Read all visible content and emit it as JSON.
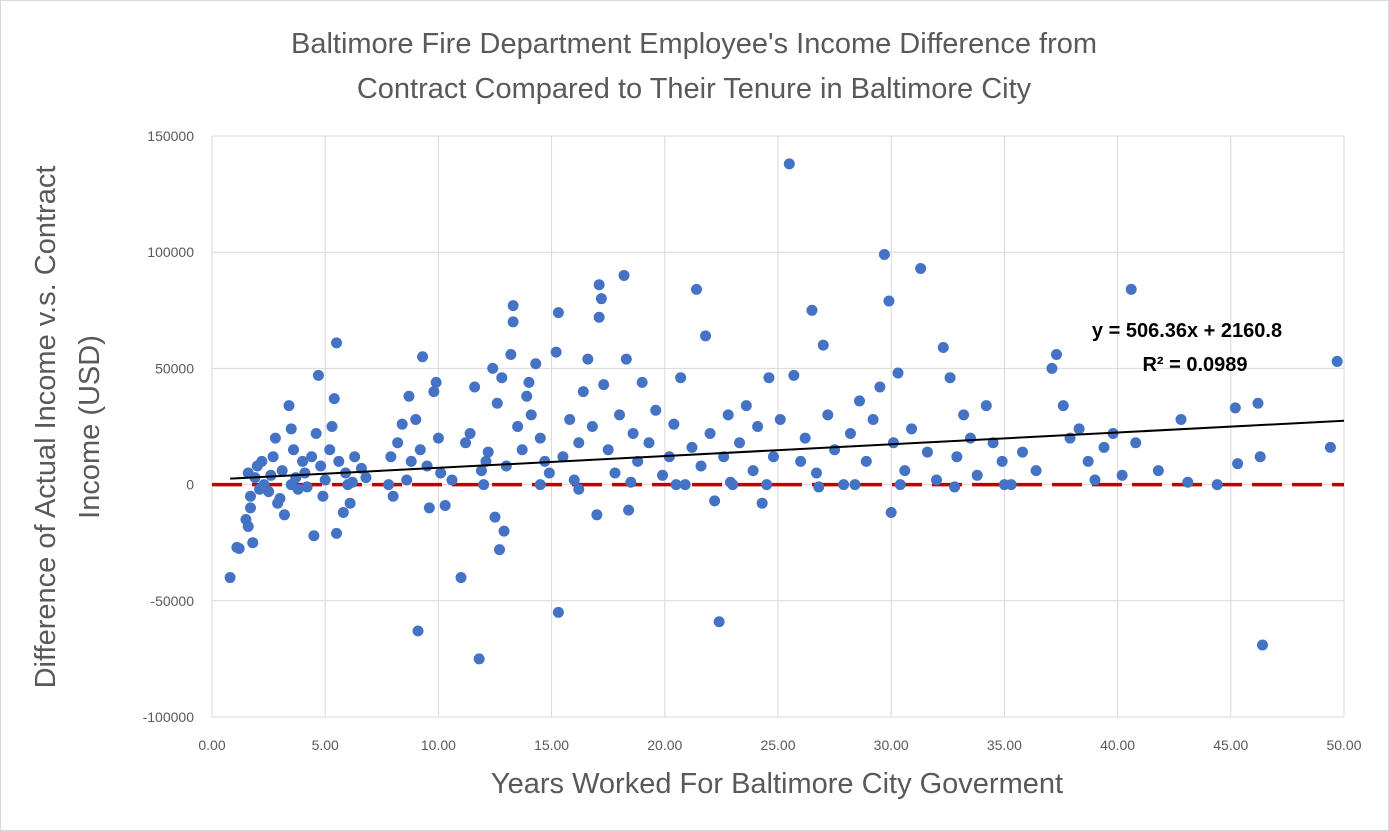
{
  "chart_data": {
    "type": "scatter",
    "title_lines": [
      "Baltimore Fire Department Employee's Income Difference from",
      "Contract Compared to Their Tenure in Baltimore City"
    ],
    "xlabel": "Years Worked For Baltimore City Goverment",
    "ylabel_lines": [
      "Difference of Actual Income v.s. Contract",
      "Income (USD)"
    ],
    "xlim": [
      0,
      50
    ],
    "ylim": [
      -100000,
      150000
    ],
    "x_ticks": [
      0,
      5,
      10,
      15,
      20,
      25,
      30,
      35,
      40,
      45,
      50
    ],
    "x_tick_labels": [
      "0.00",
      "5.00",
      "10.00",
      "15.00",
      "20.00",
      "25.00",
      "30.00",
      "35.00",
      "40.00",
      "45.00",
      "50.00"
    ],
    "y_ticks": [
      -100000,
      -50000,
      0,
      50000,
      100000,
      150000
    ],
    "y_tick_labels": [
      "-100000",
      "-50000",
      "0",
      "50000",
      "100000",
      "150000"
    ],
    "grid": {
      "x": true,
      "y": true
    },
    "colors": {
      "points": "#4472c4",
      "trendline": "#000000",
      "zero_line": "#c00000",
      "grid": "#d9d9d9"
    },
    "trendline": {
      "slope": 506.36,
      "intercept": 2160.8,
      "x_range": [
        0.8,
        50
      ]
    },
    "zero_line": {
      "y": 0,
      "style": "dashed"
    },
    "equation_label": "y = 506.36x + 2160.8",
    "r_squared_label": "R² = 0.0989",
    "points": [
      [
        0.8,
        -40000
      ],
      [
        1.1,
        -27000
      ],
      [
        1.2,
        -27500
      ],
      [
        1.5,
        -15000
      ],
      [
        1.6,
        -18000
      ],
      [
        1.7,
        -10000
      ],
      [
        1.8,
        -25000
      ],
      [
        1.6,
        5000
      ],
      [
        1.7,
        -5000
      ],
      [
        1.9,
        3000
      ],
      [
        2.0,
        8000
      ],
      [
        2.1,
        -2000
      ],
      [
        2.2,
        10000
      ],
      [
        2.3,
        0
      ],
      [
        2.5,
        -3000
      ],
      [
        2.6,
        4000
      ],
      [
        2.7,
        12000
      ],
      [
        2.8,
        20000
      ],
      [
        2.9,
        -8000
      ],
      [
        3.0,
        -6000
      ],
      [
        3.1,
        6000
      ],
      [
        3.2,
        -13000
      ],
      [
        3.4,
        34000
      ],
      [
        3.5,
        24000
      ],
      [
        3.6,
        15000
      ],
      [
        3.7,
        3000
      ],
      [
        3.8,
        -2000
      ],
      [
        4.0,
        10000
      ],
      [
        4.1,
        5000
      ],
      [
        4.2,
        -1000
      ],
      [
        4.4,
        12000
      ],
      [
        4.5,
        -22000
      ],
      [
        4.6,
        22000
      ],
      [
        4.7,
        47000
      ],
      [
        4.8,
        8000
      ],
      [
        4.9,
        -5000
      ],
      [
        5.0,
        2000
      ],
      [
        5.2,
        15000
      ],
      [
        5.3,
        25000
      ],
      [
        5.4,
        37000
      ],
      [
        5.5,
        61000
      ],
      [
        5.5,
        -21000
      ],
      [
        5.6,
        10000
      ],
      [
        5.8,
        -12000
      ],
      [
        5.9,
        5000
      ],
      [
        6.0,
        0
      ],
      [
        6.1,
        -8000
      ],
      [
        6.3,
        12000
      ],
      [
        6.6,
        7000
      ],
      [
        6.8,
        3000
      ],
      [
        7.8,
        0
      ],
      [
        7.9,
        12000
      ],
      [
        8.0,
        -5000
      ],
      [
        8.2,
        18000
      ],
      [
        8.4,
        26000
      ],
      [
        8.6,
        2000
      ],
      [
        8.7,
        38000
      ],
      [
        8.8,
        10000
      ],
      [
        9.0,
        28000
      ],
      [
        9.1,
        -63000
      ],
      [
        9.2,
        15000
      ],
      [
        9.3,
        55000
      ],
      [
        9.5,
        8000
      ],
      [
        9.6,
        -10000
      ],
      [
        9.8,
        40000
      ],
      [
        9.9,
        44000
      ],
      [
        10.0,
        20000
      ],
      [
        10.1,
        5000
      ],
      [
        10.3,
        -9000
      ],
      [
        10.6,
        2000
      ],
      [
        11.0,
        -40000
      ],
      [
        11.2,
        18000
      ],
      [
        11.4,
        22000
      ],
      [
        11.6,
        42000
      ],
      [
        11.8,
        -75000
      ],
      [
        11.9,
        6000
      ],
      [
        12.1,
        10000
      ],
      [
        12.2,
        14000
      ],
      [
        12.4,
        50000
      ],
      [
        12.5,
        -14000
      ],
      [
        12.6,
        35000
      ],
      [
        12.7,
        -28000
      ],
      [
        12.8,
        46000
      ],
      [
        12.9,
        -20000
      ],
      [
        13.0,
        8000
      ],
      [
        13.2,
        56000
      ],
      [
        13.3,
        77000
      ],
      [
        13.3,
        70000
      ],
      [
        13.5,
        25000
      ],
      [
        13.7,
        15000
      ],
      [
        13.9,
        38000
      ],
      [
        14.0,
        44000
      ],
      [
        14.1,
        30000
      ],
      [
        14.3,
        52000
      ],
      [
        14.5,
        20000
      ],
      [
        14.7,
        10000
      ],
      [
        14.9,
        5000
      ],
      [
        15.2,
        57000
      ],
      [
        15.3,
        74000
      ],
      [
        15.3,
        -55000
      ],
      [
        15.5,
        12000
      ],
      [
        15.8,
        28000
      ],
      [
        16.0,
        2000
      ],
      [
        16.2,
        18000
      ],
      [
        16.4,
        40000
      ],
      [
        16.6,
        54000
      ],
      [
        16.8,
        25000
      ],
      [
        17.0,
        -13000
      ],
      [
        17.1,
        72000
      ],
      [
        17.1,
        86000
      ],
      [
        17.2,
        80000
      ],
      [
        17.3,
        43000
      ],
      [
        17.5,
        15000
      ],
      [
        17.8,
        5000
      ],
      [
        18.0,
        30000
      ],
      [
        18.2,
        90000
      ],
      [
        18.3,
        54000
      ],
      [
        18.4,
        -11000
      ],
      [
        18.6,
        22000
      ],
      [
        18.8,
        10000
      ],
      [
        19.0,
        44000
      ],
      [
        19.3,
        18000
      ],
      [
        19.6,
        32000
      ],
      [
        19.9,
        4000
      ],
      [
        20.2,
        12000
      ],
      [
        20.4,
        26000
      ],
      [
        20.7,
        46000
      ],
      [
        20.9,
        0
      ],
      [
        21.2,
        16000
      ],
      [
        21.4,
        84000
      ],
      [
        21.6,
        8000
      ],
      [
        21.8,
        64000
      ],
      [
        22.0,
        22000
      ],
      [
        22.2,
        -7000
      ],
      [
        22.4,
        -59000
      ],
      [
        22.6,
        12000
      ],
      [
        22.8,
        30000
      ],
      [
        23.0,
        0
      ],
      [
        23.3,
        18000
      ],
      [
        23.6,
        34000
      ],
      [
        23.9,
        6000
      ],
      [
        24.1,
        25000
      ],
      [
        24.3,
        -8000
      ],
      [
        24.6,
        46000
      ],
      [
        24.8,
        12000
      ],
      [
        25.1,
        28000
      ],
      [
        25.5,
        138000
      ],
      [
        25.7,
        47000
      ],
      [
        26.0,
        10000
      ],
      [
        26.2,
        20000
      ],
      [
        26.5,
        75000
      ],
      [
        26.7,
        5000
      ],
      [
        27.0,
        60000
      ],
      [
        27.2,
        30000
      ],
      [
        27.5,
        15000
      ],
      [
        27.9,
        0
      ],
      [
        28.2,
        22000
      ],
      [
        28.6,
        36000
      ],
      [
        28.9,
        10000
      ],
      [
        29.2,
        28000
      ],
      [
        29.5,
        42000
      ],
      [
        29.7,
        99000
      ],
      [
        29.9,
        79000
      ],
      [
        30.0,
        -12000
      ],
      [
        30.1,
        18000
      ],
      [
        30.3,
        48000
      ],
      [
        30.6,
        6000
      ],
      [
        30.9,
        24000
      ],
      [
        31.3,
        93000
      ],
      [
        31.6,
        14000
      ],
      [
        32.0,
        2000
      ],
      [
        32.3,
        59000
      ],
      [
        32.6,
        46000
      ],
      [
        32.9,
        12000
      ],
      [
        33.2,
        30000
      ],
      [
        33.5,
        20000
      ],
      [
        33.8,
        4000
      ],
      [
        34.2,
        34000
      ],
      [
        34.5,
        18000
      ],
      [
        34.9,
        10000
      ],
      [
        35.3,
        0
      ],
      [
        35.8,
        14000
      ],
      [
        36.4,
        6000
      ],
      [
        37.1,
        50000
      ],
      [
        37.3,
        56000
      ],
      [
        37.6,
        34000
      ],
      [
        37.9,
        20000
      ],
      [
        38.3,
        24000
      ],
      [
        38.7,
        10000
      ],
      [
        39.0,
        2000
      ],
      [
        39.4,
        16000
      ],
      [
        39.8,
        22000
      ],
      [
        40.2,
        4000
      ],
      [
        40.6,
        84000
      ],
      [
        40.8,
        18000
      ],
      [
        41.8,
        6000
      ],
      [
        42.8,
        28000
      ],
      [
        43.1,
        1000
      ],
      [
        44.4,
        0
      ],
      [
        45.2,
        33000
      ],
      [
        45.3,
        9000
      ],
      [
        46.2,
        35000
      ],
      [
        46.3,
        12000
      ],
      [
        46.4,
        -69000
      ],
      [
        49.4,
        16000
      ],
      [
        49.7,
        53000
      ],
      [
        12.0,
        0
      ],
      [
        14.5,
        0
      ],
      [
        16.2,
        -2000
      ],
      [
        18.5,
        1000
      ],
      [
        20.5,
        0
      ],
      [
        22.9,
        1000
      ],
      [
        24.5,
        0
      ],
      [
        26.8,
        -1000
      ],
      [
        28.4,
        0
      ],
      [
        30.4,
        0
      ],
      [
        32.8,
        -1000
      ],
      [
        35.0,
        0
      ],
      [
        3.5,
        0
      ],
      [
        6.2,
        1000
      ]
    ]
  }
}
